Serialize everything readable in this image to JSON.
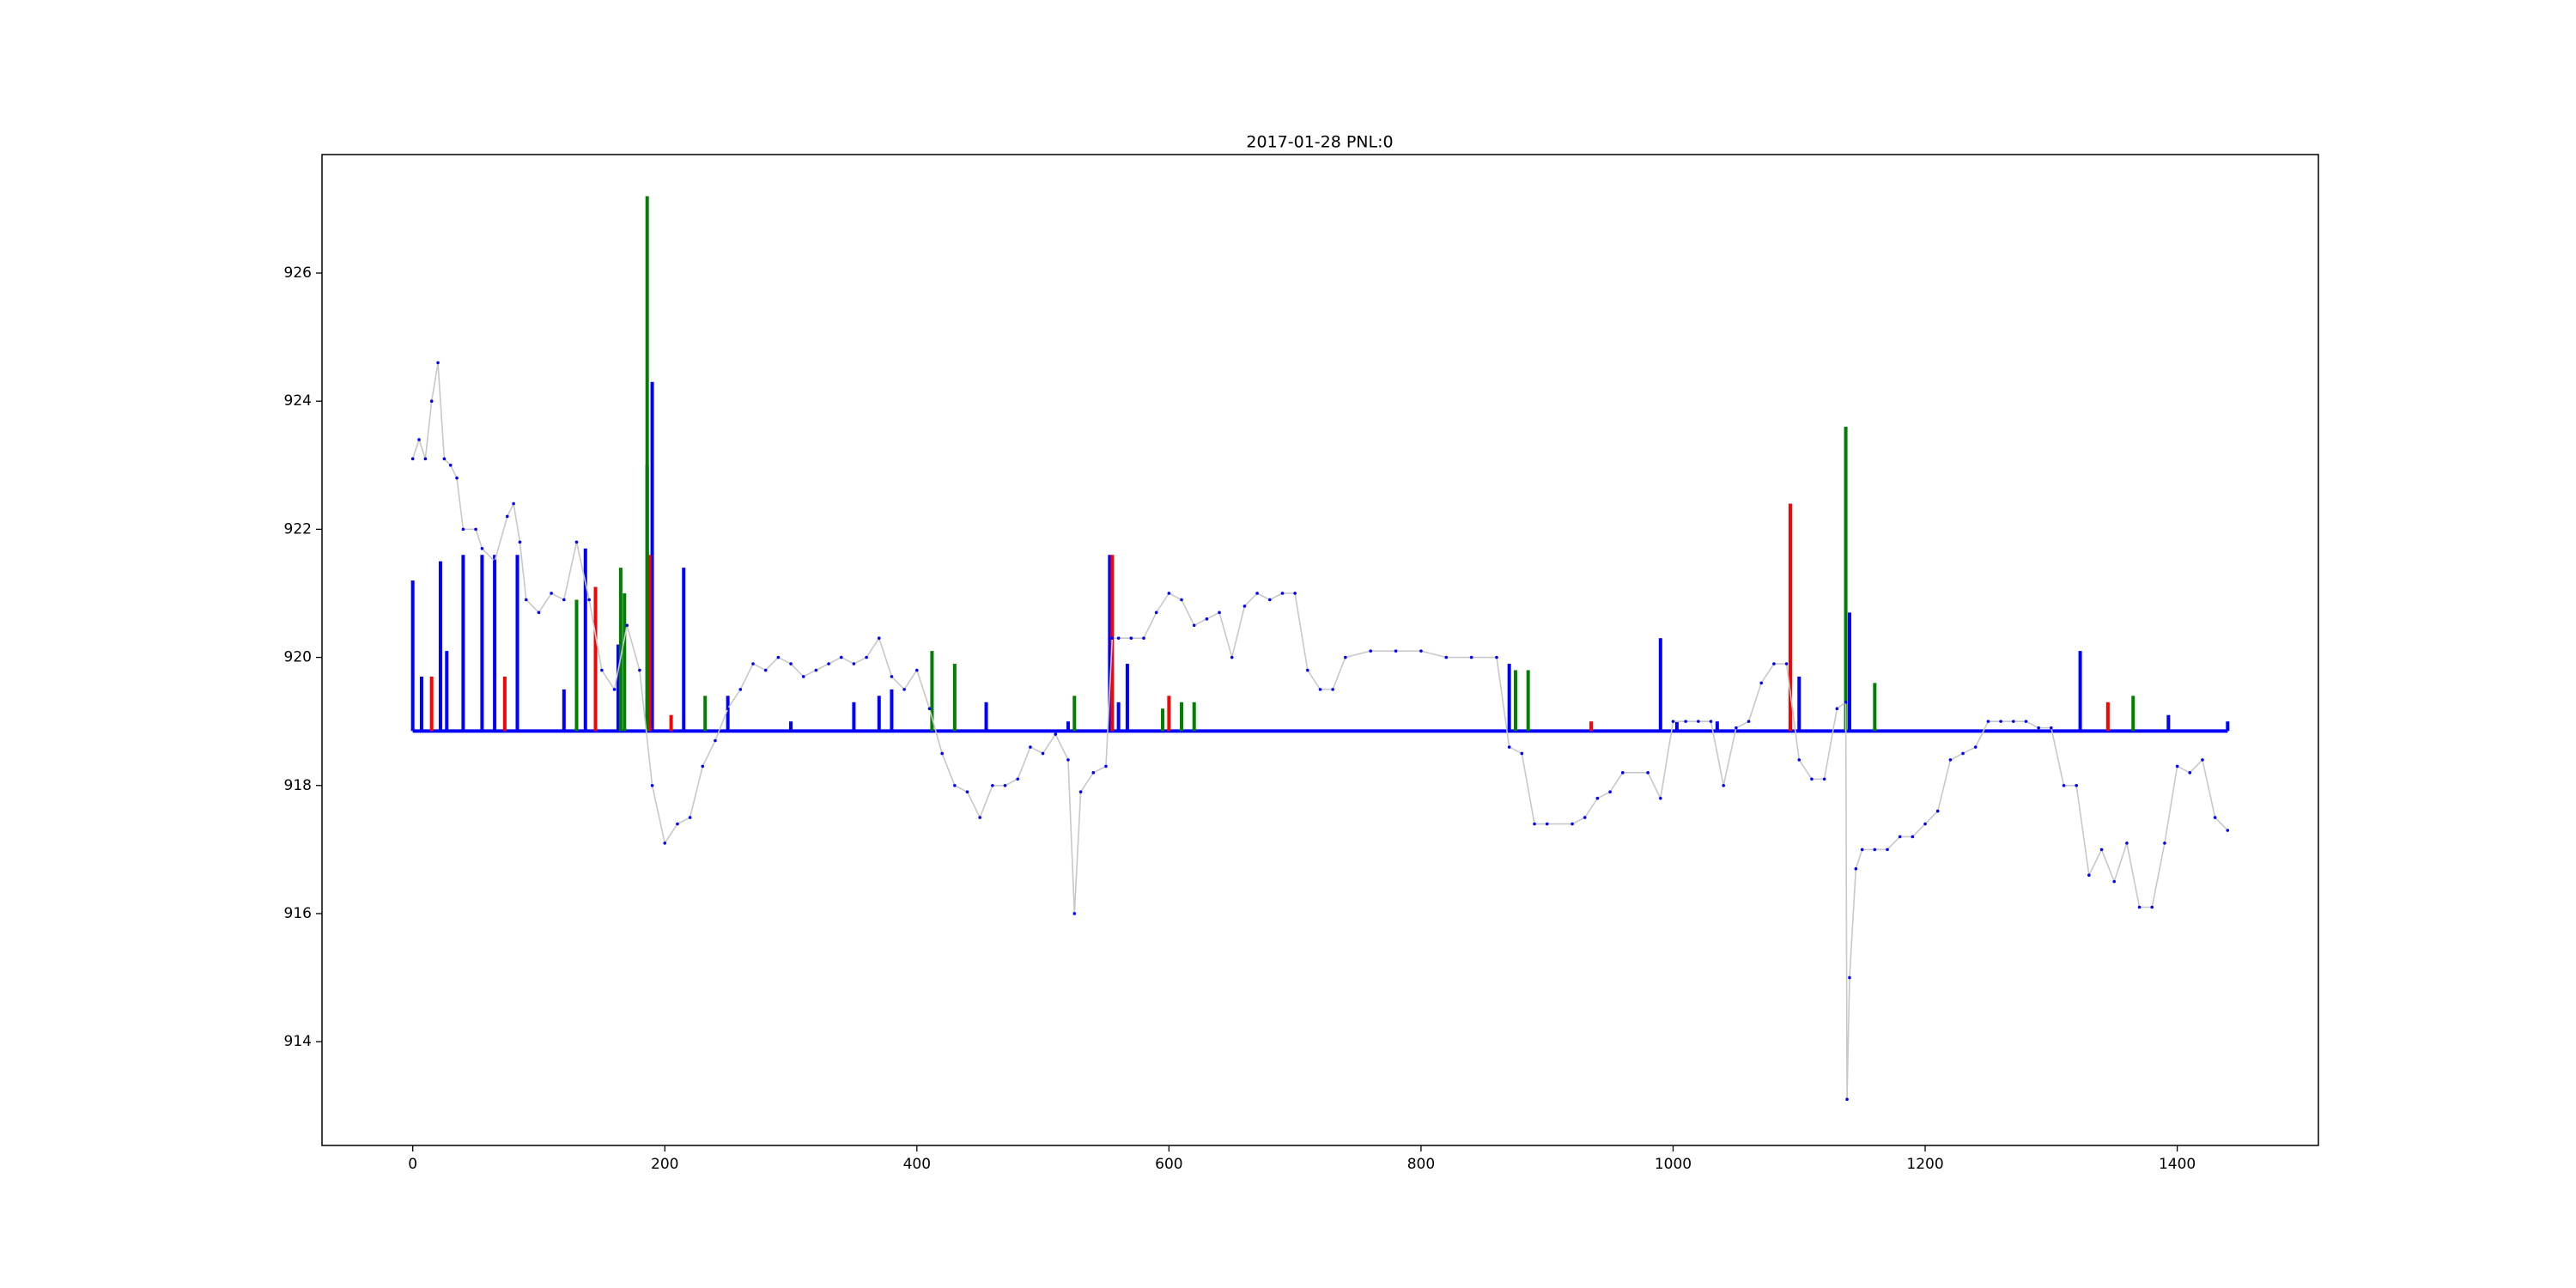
{
  "chart_data": {
    "type": "line",
    "title": "2017-01-28 PNL:0",
    "xlim": [
      -72,
      1512
    ],
    "ylim": [
      912.38,
      927.85
    ],
    "xticks": [
      0,
      200,
      400,
      600,
      800,
      1000,
      1200,
      1400
    ],
    "yticks": [
      914,
      916,
      918,
      920,
      922,
      924,
      926
    ],
    "grid": false,
    "series": [
      {
        "color": "#c8c8c8",
        "marker_color": "#0000ff",
        "x": [
          0,
          5,
          10,
          15,
          20,
          25,
          30,
          35,
          40,
          50,
          55,
          65,
          75,
          80,
          85,
          90,
          100,
          110,
          120,
          130,
          140,
          150,
          160,
          170,
          180,
          190,
          200,
          210,
          220,
          230,
          240,
          250,
          260,
          270,
          280,
          290,
          300,
          310,
          320,
          330,
          340,
          350,
          360,
          370,
          380,
          390,
          400,
          410,
          420,
          430,
          440,
          450,
          460,
          470,
          480,
          490,
          500,
          510,
          520,
          525,
          530,
          540,
          550,
          555,
          560,
          570,
          580,
          590,
          600,
          610,
          620,
          630,
          640,
          650,
          660,
          670,
          680,
          690,
          700,
          710,
          720,
          730,
          740,
          760,
          780,
          800,
          820,
          840,
          860,
          870,
          880,
          890,
          900,
          920,
          930,
          940,
          950,
          960,
          980,
          990,
          1000,
          1010,
          1020,
          1030,
          1040,
          1050,
          1060,
          1070,
          1080,
          1090,
          1100,
          1110,
          1120,
          1130,
          1137,
          1138,
          1140,
          1145,
          1150,
          1160,
          1170,
          1180,
          1190,
          1200,
          1210,
          1220,
          1230,
          1240,
          1250,
          1260,
          1270,
          1280,
          1290,
          1300,
          1310,
          1320,
          1330,
          1340,
          1350,
          1360,
          1370,
          1380,
          1390,
          1400,
          1410,
          1420,
          1430,
          1440
        ],
        "values": [
          923.1,
          923.4,
          923.1,
          924.0,
          924.6,
          923.1,
          923.0,
          922.8,
          922.0,
          922.0,
          921.7,
          921.5,
          922.2,
          922.4,
          921.8,
          920.9,
          920.7,
          921.0,
          920.9,
          921.8,
          920.9,
          919.8,
          919.5,
          920.5,
          919.8,
          918.0,
          917.1,
          917.4,
          917.5,
          918.3,
          918.7,
          919.2,
          919.5,
          919.9,
          919.8,
          920.0,
          919.9,
          919.7,
          919.8,
          919.9,
          920.0,
          919.9,
          920.0,
          920.3,
          919.7,
          919.5,
          919.8,
          919.2,
          918.5,
          918.0,
          917.9,
          917.5,
          918.0,
          918.0,
          918.1,
          918.6,
          918.5,
          918.8,
          918.4,
          916.0,
          917.9,
          918.2,
          918.3,
          920.3,
          920.3,
          920.3,
          920.3,
          920.7,
          921.0,
          920.9,
          920.5,
          920.6,
          920.7,
          920.0,
          920.8,
          921.0,
          920.9,
          921.0,
          921.0,
          919.8,
          919.5,
          919.5,
          920.0,
          920.1,
          920.1,
          920.1,
          920.0,
          920.0,
          920.0,
          918.6,
          918.5,
          917.4,
          917.4,
          917.4,
          917.5,
          917.8,
          917.9,
          918.2,
          918.2,
          917.8,
          919.0,
          919.0,
          919.0,
          919.0,
          918.0,
          918.9,
          919.0,
          919.6,
          919.9,
          919.9,
          918.4,
          918.1,
          918.1,
          919.2,
          919.3,
          913.1,
          915.0,
          916.7,
          917.0,
          917.0,
          917.0,
          917.2,
          917.2,
          917.4,
          917.6,
          918.4,
          918.5,
          918.6,
          919.0,
          919.0,
          919.0,
          919.0,
          918.9,
          918.9,
          918.0,
          918.0,
          916.6,
          917.0,
          916.5,
          917.1,
          916.1,
          916.1,
          917.1,
          918.3,
          918.2,
          918.4,
          917.5,
          917.3
        ]
      }
    ],
    "bar_base": 918.85,
    "bars": [
      {
        "color": "#0000ff",
        "x": [
          0,
          7,
          22,
          27,
          40,
          55,
          65,
          83,
          120,
          137,
          163,
          186,
          190,
          215,
          250,
          300,
          350,
          370,
          380,
          455,
          520,
          553,
          560,
          567,
          870,
          990,
          1003,
          1035,
          1100,
          1140,
          1323,
          1393,
          1440
        ],
        "values": [
          921.2,
          919.7,
          921.5,
          920.1,
          921.6,
          921.6,
          921.6,
          921.6,
          919.5,
          921.7,
          920.2,
          923.0,
          924.3,
          921.4,
          919.4,
          919.0,
          919.3,
          919.4,
          919.5,
          919.3,
          919.0,
          921.6,
          919.3,
          919.9,
          919.9,
          920.3,
          919.0,
          919.0,
          919.7,
          920.7,
          920.1,
          919.1,
          919.0
        ]
      },
      {
        "color": "#ff0000",
        "x": [
          15,
          73,
          145,
          188,
          205,
          555,
          600,
          935,
          1093,
          1345
        ],
        "values": [
          919.7,
          919.7,
          921.1,
          921.6,
          919.1,
          921.6,
          919.4,
          919.0,
          922.4,
          919.3
        ]
      },
      {
        "color": "#008000",
        "x": [
          130,
          165,
          168,
          186,
          232,
          412,
          430,
          525,
          595,
          610,
          620,
          875,
          885,
          1137,
          1160,
          1365
        ],
        "values": [
          920.9,
          921.4,
          921.0,
          927.2,
          919.4,
          920.1,
          919.9,
          919.4,
          919.2,
          919.3,
          919.3,
          919.8,
          919.8,
          923.6,
          919.6,
          919.4
        ]
      }
    ]
  }
}
